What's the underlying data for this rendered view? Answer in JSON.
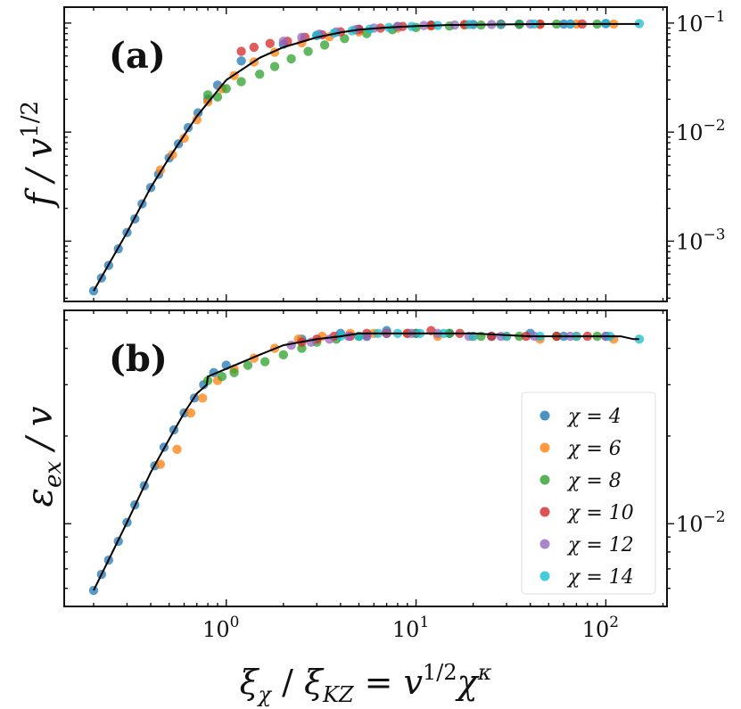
{
  "chart_data": [
    {
      "panel": "a",
      "type": "scatter",
      "panel_label": "(a)",
      "ylabel": "f / v^1/2",
      "ylabel_parts": {
        "main": "f / v",
        "sup": "1/2"
      },
      "xscale": "log",
      "yscale": "log",
      "xlim": [
        0.14,
        210
      ],
      "ylim": [
        0.00028,
        0.14
      ],
      "y_axis_side": "right",
      "yticks": [
        {
          "value": 0.1,
          "base": "10",
          "exp": "−1"
        },
        {
          "value": 0.01,
          "base": "10",
          "exp": "−2"
        },
        {
          "value": 0.001,
          "base": "10",
          "exp": "−3"
        }
      ],
      "series": [
        {
          "name": "χ = 4",
          "color": "#1f77b4",
          "points": [
            [
              0.2,
              0.00035
            ],
            [
              0.22,
              0.00046
            ],
            [
              0.24,
              0.0006
            ],
            [
              0.27,
              0.00085
            ],
            [
              0.3,
              0.0012
            ],
            [
              0.33,
              0.0016
            ],
            [
              0.36,
              0.0022
            ],
            [
              0.4,
              0.0031
            ],
            [
              0.44,
              0.0041
            ],
            [
              0.5,
              0.0058
            ],
            [
              0.56,
              0.0078
            ],
            [
              0.63,
              0.011
            ],
            [
              0.71,
              0.015
            ],
            [
              0.8,
              0.02
            ],
            [
              0.9,
              0.027
            ],
            [
              1.2,
              0.045
            ],
            [
              2.0,
              0.064
            ],
            [
              3.0,
              0.077
            ],
            [
              5.0,
              0.088
            ],
            [
              8,
              0.093
            ],
            [
              12,
              0.096
            ],
            [
              20,
              0.097
            ],
            [
              35,
              0.098
            ],
            [
              60,
              0.098
            ],
            [
              100,
              0.099
            ]
          ]
        },
        {
          "name": "χ = 6",
          "color": "#ff7f0e",
          "points": [
            [
              0.45,
              0.0045
            ],
            [
              0.52,
              0.0062
            ],
            [
              0.6,
              0.0088
            ],
            [
              0.7,
              0.013
            ],
            [
              0.8,
              0.019
            ],
            [
              0.95,
              0.025
            ],
            [
              1.1,
              0.033
            ],
            [
              1.4,
              0.044
            ],
            [
              1.8,
              0.054
            ],
            [
              2.5,
              0.066
            ],
            [
              3.5,
              0.075
            ],
            [
              5,
              0.083
            ],
            [
              8,
              0.09
            ],
            [
              12,
              0.094
            ],
            [
              18,
              0.096
            ],
            [
              28,
              0.097
            ],
            [
              45,
              0.097
            ],
            [
              70,
              0.098
            ],
            [
              110,
              0.098
            ]
          ]
        },
        {
          "name": "χ = 8",
          "color": "#2ca02c",
          "points": [
            [
              0.8,
              0.022
            ],
            [
              0.9,
              0.021
            ],
            [
              1.0,
              0.025
            ],
            [
              1.2,
              0.029
            ],
            [
              1.5,
              0.034
            ],
            [
              1.8,
              0.04
            ],
            [
              2.2,
              0.047
            ],
            [
              2.7,
              0.055
            ],
            [
              3.3,
              0.063
            ],
            [
              4.2,
              0.072
            ],
            [
              5.5,
              0.08
            ],
            [
              7.5,
              0.087
            ],
            [
              10,
              0.091
            ],
            [
              15,
              0.094
            ],
            [
              22,
              0.096
            ],
            [
              35,
              0.097
            ],
            [
              55,
              0.098
            ],
            [
              90,
              0.098
            ]
          ]
        },
        {
          "name": "χ = 10",
          "color": "#d62728",
          "points": [
            [
              1.2,
              0.055
            ],
            [
              1.4,
              0.06
            ],
            [
              1.7,
              0.065
            ],
            [
              2.1,
              0.068
            ],
            [
              2.6,
              0.074
            ],
            [
              3.2,
              0.078
            ],
            [
              4.0,
              0.083
            ],
            [
              5.0,
              0.087
            ],
            [
              6.5,
              0.09
            ],
            [
              8.5,
              0.093
            ],
            [
              12,
              0.095
            ],
            [
              18,
              0.097
            ],
            [
              28,
              0.098
            ],
            [
              45,
              0.098
            ],
            [
              75,
              0.098
            ]
          ]
        },
        {
          "name": "χ = 12",
          "color": "#9467bd",
          "points": [
            [
              2.0,
              0.068
            ],
            [
              2.5,
              0.074
            ],
            [
              3.1,
              0.079
            ],
            [
              3.8,
              0.083
            ],
            [
              4.8,
              0.087
            ],
            [
              6.0,
              0.09
            ],
            [
              8.0,
              0.093
            ],
            [
              11,
              0.095
            ],
            [
              16,
              0.096
            ],
            [
              25,
              0.097
            ],
            [
              40,
              0.098
            ],
            [
              65,
              0.098
            ],
            [
              100,
              0.099
            ]
          ]
        },
        {
          "name": "χ = 14",
          "color": "#17becf",
          "points": [
            [
              3.0,
              0.077
            ],
            [
              3.7,
              0.081
            ],
            [
              4.6,
              0.085
            ],
            [
              5.7,
              0.088
            ],
            [
              7.2,
              0.091
            ],
            [
              9.5,
              0.093
            ],
            [
              13,
              0.095
            ],
            [
              19,
              0.097
            ],
            [
              28,
              0.097
            ],
            [
              42,
              0.098
            ],
            [
              65,
              0.098
            ],
            [
              100,
              0.099
            ],
            [
              150,
              0.099
            ]
          ]
        }
      ],
      "fit_line": [
        [
          0.2,
          0.00035
        ],
        [
          0.3,
          0.0012
        ],
        [
          0.4,
          0.0031
        ],
        [
          0.5,
          0.0058
        ],
        [
          0.7,
          0.014
        ],
        [
          1.0,
          0.03
        ],
        [
          1.5,
          0.048
        ],
        [
          2,
          0.06
        ],
        [
          3,
          0.074
        ],
        [
          4,
          0.082
        ],
        [
          5,
          0.087
        ],
        [
          7,
          0.091
        ],
        [
          10,
          0.094
        ],
        [
          15,
          0.096
        ],
        [
          25,
          0.097
        ],
        [
          50,
          0.098
        ],
        [
          100,
          0.098
        ],
        [
          150,
          0.098
        ]
      ]
    },
    {
      "panel": "b",
      "type": "scatter",
      "panel_label": "(b)",
      "ylabel": "ε_ex / v",
      "ylabel_parts": {
        "main": "ε",
        "sub": "ex",
        "rest": " / v"
      },
      "xscale": "log",
      "yscale": "log",
      "xlim": [
        0.14,
        210
      ],
      "ylim": [
        0.0052,
        0.054
      ],
      "y_axis_side": "right",
      "yticks": [
        {
          "value": 0.01,
          "base": "10",
          "exp": "−2"
        }
      ],
      "series": [
        {
          "name": "χ = 4",
          "color": "#1f77b4",
          "points": [
            [
              0.2,
              0.0059
            ],
            [
              0.22,
              0.0067
            ],
            [
              0.24,
              0.0075
            ],
            [
              0.27,
              0.0087
            ],
            [
              0.3,
              0.0101
            ],
            [
              0.33,
              0.0116
            ],
            [
              0.37,
              0.0135
            ],
            [
              0.42,
              0.0158
            ],
            [
              0.47,
              0.0183
            ],
            [
              0.53,
              0.021
            ],
            [
              0.6,
              0.024
            ],
            [
              0.68,
              0.027
            ],
            [
              0.76,
              0.03
            ],
            [
              0.86,
              0.033
            ],
            [
              1.0,
              0.035
            ],
            [
              2.5,
              0.043
            ],
            [
              4,
              0.045
            ],
            [
              5.5,
              0.044
            ],
            [
              7,
              0.046
            ],
            [
              10,
              0.045
            ],
            [
              15,
              0.045
            ],
            [
              25,
              0.044
            ],
            [
              40,
              0.045
            ],
            [
              60,
              0.044
            ],
            [
              100,
              0.044
            ]
          ]
        },
        {
          "name": "χ = 6",
          "color": "#ff7f0e",
          "points": [
            [
              0.45,
              0.016
            ],
            [
              0.55,
              0.018
            ],
            [
              0.65,
              0.024
            ],
            [
              0.75,
              0.027
            ],
            [
              0.9,
              0.031
            ],
            [
              1.1,
              0.034
            ],
            [
              1.4,
              0.037
            ],
            [
              1.8,
              0.04
            ],
            [
              2.4,
              0.043
            ],
            [
              3.2,
              0.044
            ],
            [
              4.5,
              0.045
            ],
            [
              6,
              0.045
            ],
            [
              9,
              0.045
            ],
            [
              13,
              0.044
            ],
            [
              20,
              0.044
            ],
            [
              30,
              0.044
            ],
            [
              45,
              0.043
            ],
            [
              70,
              0.044
            ],
            [
              110,
              0.043
            ]
          ]
        },
        {
          "name": "χ = 8",
          "color": "#2ca02c",
          "points": [
            [
              0.8,
              0.031
            ],
            [
              0.95,
              0.032
            ],
            [
              1.1,
              0.033
            ],
            [
              1.3,
              0.035
            ],
            [
              1.6,
              0.036
            ],
            [
              2.0,
              0.038
            ],
            [
              2.5,
              0.04
            ],
            [
              3.0,
              0.042
            ],
            [
              3.8,
              0.043
            ],
            [
              5,
              0.044
            ],
            [
              7,
              0.045
            ],
            [
              10,
              0.045
            ],
            [
              15,
              0.045
            ],
            [
              22,
              0.044
            ],
            [
              35,
              0.044
            ],
            [
              55,
              0.044
            ],
            [
              90,
              0.044
            ]
          ]
        },
        {
          "name": "χ = 10",
          "color": "#d62728",
          "points": [
            [
              2.5,
              0.042
            ],
            [
              3.0,
              0.043
            ],
            [
              3.7,
              0.044
            ],
            [
              4.5,
              0.044
            ],
            [
              5.5,
              0.045
            ],
            [
              7,
              0.045
            ],
            [
              9,
              0.045
            ],
            [
              12,
              0.046
            ],
            [
              17,
              0.045
            ],
            [
              25,
              0.044
            ],
            [
              38,
              0.044
            ],
            [
              55,
              0.044
            ],
            [
              80,
              0.044
            ]
          ]
        },
        {
          "name": "χ = 12",
          "color": "#9467bd",
          "points": [
            [
              2.2,
              0.041
            ],
            [
              2.8,
              0.042
            ],
            [
              3.5,
              0.043
            ],
            [
              4.4,
              0.044
            ],
            [
              5.5,
              0.044
            ],
            [
              7,
              0.045
            ],
            [
              9.5,
              0.045
            ],
            [
              13,
              0.045
            ],
            [
              19,
              0.044
            ],
            [
              28,
              0.044
            ],
            [
              42,
              0.044
            ],
            [
              65,
              0.044
            ],
            [
              100,
              0.044
            ]
          ]
        },
        {
          "name": "χ = 14",
          "color": "#17becf",
          "points": [
            [
              4,
              0.044
            ],
            [
              5,
              0.044
            ],
            [
              6.3,
              0.045
            ],
            [
              8,
              0.045
            ],
            [
              10.5,
              0.045
            ],
            [
              14,
              0.045
            ],
            [
              20,
              0.044
            ],
            [
              30,
              0.044
            ],
            [
              45,
              0.044
            ],
            [
              70,
              0.044
            ],
            [
              105,
              0.044
            ],
            [
              150,
              0.043
            ]
          ]
        }
      ],
      "fit_line": [
        [
          0.2,
          0.0059
        ],
        [
          0.3,
          0.0101
        ],
        [
          0.4,
          0.015
        ],
        [
          0.5,
          0.0195
        ],
        [
          0.6,
          0.024
        ],
        [
          0.7,
          0.028
        ],
        [
          0.79,
          0.03
        ],
        [
          0.8,
          0.032
        ],
        [
          1.0,
          0.034
        ],
        [
          1.5,
          0.038
        ],
        [
          2,
          0.041
        ],
        [
          3,
          0.043
        ],
        [
          4,
          0.044
        ],
        [
          5,
          0.045
        ],
        [
          7,
          0.045
        ],
        [
          10,
          0.045
        ],
        [
          20,
          0.045
        ],
        [
          40,
          0.044
        ],
        [
          80,
          0.044
        ],
        [
          120,
          0.044
        ],
        [
          140,
          0.043
        ],
        [
          150,
          0.043
        ]
      ]
    }
  ],
  "xaxis": {
    "label_parts": {
      "a": "ξ",
      "a_sub": "χ",
      "slash": " / ",
      "b": "ξ",
      "b_sub": "KZ",
      "eq": "  =  ",
      "c": "v",
      "c_sup": "1/2",
      "d": "χ",
      "d_sup": "κ"
    },
    "xticks": [
      {
        "value": 1,
        "base": "10",
        "exp": "0"
      },
      {
        "value": 10,
        "base": "10",
        "exp": "1"
      },
      {
        "value": 100,
        "base": "10",
        "exp": "2"
      }
    ]
  },
  "legend": {
    "location": "lower-right",
    "entries": [
      {
        "label": "χ = 4",
        "color": "#1f77b4"
      },
      {
        "label": "χ = 6",
        "color": "#ff7f0e"
      },
      {
        "label": "χ = 8",
        "color": "#2ca02c"
      },
      {
        "label": "χ = 10",
        "color": "#d62728"
      },
      {
        "label": "χ = 12",
        "color": "#9467bd"
      },
      {
        "label": "χ = 14",
        "color": "#17becf"
      }
    ]
  }
}
